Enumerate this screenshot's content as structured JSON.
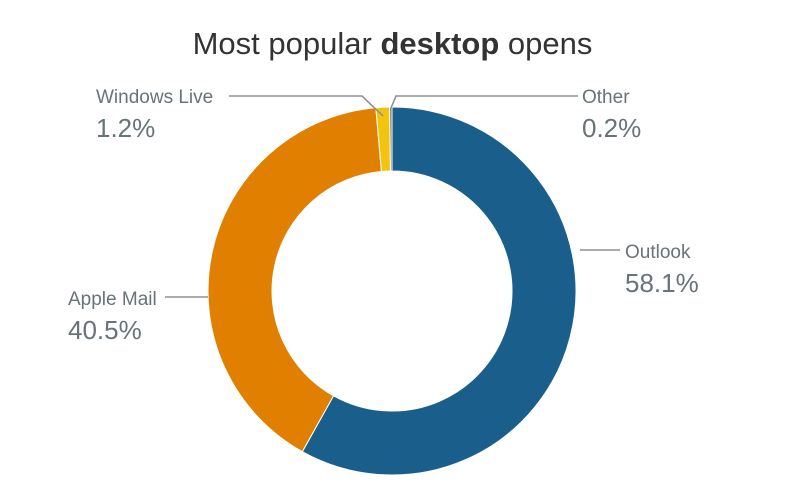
{
  "chart_data": {
    "type": "pie",
    "donut": true,
    "title_parts": [
      "Most popular ",
      "desktop",
      " opens"
    ],
    "title_bold_index": 1,
    "slices": [
      {
        "label": "Outlook",
        "value": 58.1,
        "display": "58.1%",
        "color": "#1a5e8c"
      },
      {
        "label": "Apple Mail",
        "value": 40.5,
        "display": "40.5%",
        "color": "#e07f00"
      },
      {
        "label": "Windows Live",
        "value": 1.2,
        "display": "1.2%",
        "color": "#f2c40f"
      },
      {
        "label": "Other",
        "value": 0.2,
        "display": "0.2%",
        "color": "#6b6b6b"
      }
    ],
    "legend": "none"
  }
}
